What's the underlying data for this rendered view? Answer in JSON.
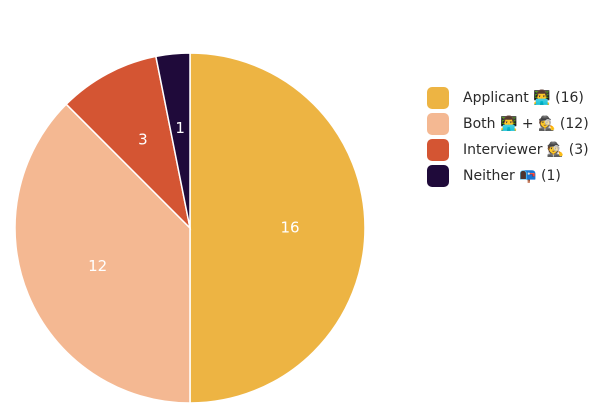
{
  "chart_data": {
    "type": "pie",
    "title": "",
    "categories": [
      "Applicant",
      "Both",
      "Interviewer",
      "Neither"
    ],
    "values": [
      16,
      12,
      3,
      1
    ],
    "slice_labels": [
      "16",
      "12",
      "3",
      "1"
    ],
    "colors": [
      "#EDB443",
      "#F4B892",
      "#D45533",
      "#1F0A3A"
    ],
    "legend": {
      "placement": "right",
      "entries": [
        {
          "label": "Applicant 👨‍💻 (16)",
          "color": "#EDB443"
        },
        {
          "label": "Both 👨‍💻 + 🕵️ (12)",
          "color": "#F4B892"
        },
        {
          "label": "Interviewer 🕵️ (3)",
          "color": "#D45533"
        },
        {
          "label": "Neither 📭 (1)",
          "color": "#1F0A3A"
        }
      ]
    },
    "start_angle": "12 o'clock",
    "direction": "clockwise"
  }
}
